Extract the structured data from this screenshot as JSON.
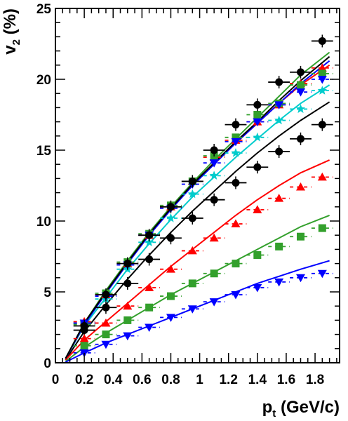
{
  "chart_data": {
    "type": "scatter",
    "title": "",
    "xlabel": {
      "main": "p",
      "sub": "t",
      "rest": " (GeV/c)"
    },
    "ylabel": {
      "main": "v",
      "sub": "2",
      "rest": " (%)"
    },
    "xlim": [
      0,
      1.97
    ],
    "ylim": [
      0,
      25
    ],
    "xticks_major": [
      0,
      0.2,
      0.4,
      0.6,
      0.8,
      1,
      1.2,
      1.4,
      1.6,
      1.8
    ],
    "xtick_labels": [
      "0",
      "0.2",
      "0.4",
      "0.6",
      "0.8",
      "1",
      "1.2",
      "1.4",
      "1.6",
      "1.8"
    ],
    "yticks_major": [
      0,
      5,
      10,
      15,
      20,
      25
    ],
    "ytick_labels": [
      "0",
      "5",
      "10",
      "15",
      "20",
      "25"
    ],
    "grid": false,
    "legend": "none",
    "x_bin_halfwidth": 0.075,
    "x": [
      0.2,
      0.35,
      0.5,
      0.65,
      0.8,
      0.95,
      1.1,
      1.25,
      1.4,
      1.55,
      1.7,
      1.85
    ],
    "series": [
      {
        "marker": "circle",
        "color": "#000000",
        "dashed": false,
        "values": [
          2.3,
          3.9,
          5.6,
          7.3,
          8.8,
          10.2,
          11.5,
          12.7,
          13.8,
          14.9,
          15.8,
          16.8
        ],
        "curve": [
          [
            0.07,
            0.2
          ],
          [
            0.2,
            2.2
          ],
          [
            0.35,
            4.1
          ],
          [
            0.5,
            5.9
          ],
          [
            0.65,
            7.6
          ],
          [
            0.8,
            9.2
          ],
          [
            0.95,
            10.7
          ],
          [
            1.1,
            12.1
          ],
          [
            1.25,
            13.5
          ],
          [
            1.4,
            14.8
          ],
          [
            1.55,
            16.0
          ],
          [
            1.7,
            17.1
          ],
          [
            1.9,
            18.4
          ]
        ]
      },
      {
        "marker": "triangle-up",
        "color": "#ff0000",
        "dashed": true,
        "values": [
          1.7,
          2.8,
          4.0,
          5.3,
          6.6,
          7.9,
          8.8,
          9.8,
          10.8,
          11.6,
          12.4,
          13.1
        ],
        "curve": [
          [
            0.07,
            0.2
          ],
          [
            0.2,
            1.6
          ],
          [
            0.35,
            2.9
          ],
          [
            0.5,
            4.2
          ],
          [
            0.65,
            5.5
          ],
          [
            0.8,
            6.8
          ],
          [
            0.95,
            8.0
          ],
          [
            1.1,
            9.2
          ],
          [
            1.25,
            10.4
          ],
          [
            1.4,
            11.5
          ],
          [
            1.55,
            12.5
          ],
          [
            1.7,
            13.4
          ],
          [
            1.9,
            14.3
          ]
        ]
      },
      {
        "marker": "square",
        "color": "#33a02c",
        "dashed": true,
        "values": [
          1.2,
          2.0,
          3.0,
          3.9,
          4.7,
          5.6,
          6.3,
          7.0,
          7.6,
          8.2,
          8.9,
          9.5
        ],
        "curve": [
          [
            0.07,
            0.1
          ],
          [
            0.2,
            1.1
          ],
          [
            0.35,
            2.1
          ],
          [
            0.5,
            3.0
          ],
          [
            0.65,
            3.9
          ],
          [
            0.8,
            4.8
          ],
          [
            0.95,
            5.6
          ],
          [
            1.1,
            6.4
          ],
          [
            1.25,
            7.2
          ],
          [
            1.4,
            8.0
          ],
          [
            1.55,
            8.8
          ],
          [
            1.7,
            9.6
          ],
          [
            1.9,
            10.4
          ]
        ]
      },
      {
        "marker": "triangle-down",
        "color": "#0000ff",
        "dashed": true,
        "values": [
          0.7,
          1.3,
          1.9,
          2.5,
          3.2,
          3.8,
          4.3,
          4.8,
          5.3,
          5.7,
          6.0,
          6.3
        ],
        "curve": [
          [
            0.07,
            0.05
          ],
          [
            0.2,
            0.7
          ],
          [
            0.35,
            1.4
          ],
          [
            0.5,
            2.0
          ],
          [
            0.65,
            2.6
          ],
          [
            0.8,
            3.2
          ],
          [
            0.95,
            3.8
          ],
          [
            1.1,
            4.4
          ],
          [
            1.25,
            5.0
          ],
          [
            1.4,
            5.6
          ],
          [
            1.55,
            6.1
          ],
          [
            1.7,
            6.6
          ],
          [
            1.9,
            7.2
          ]
        ]
      },
      {
        "marker": "star",
        "color": "#00cccc",
        "dashed": true,
        "values": [
          2.8,
          4.5,
          6.6,
          8.5,
          10.2,
          11.9,
          13.2,
          14.8,
          15.9,
          17.1,
          17.9,
          19.2
        ],
        "curve": [
          [
            0.07,
            0.3
          ],
          [
            0.2,
            2.6
          ],
          [
            0.35,
            4.6
          ],
          [
            0.5,
            6.6
          ],
          [
            0.65,
            8.4
          ],
          [
            0.8,
            10.1
          ],
          [
            0.95,
            11.7
          ],
          [
            1.1,
            13.1
          ],
          [
            1.25,
            14.5
          ],
          [
            1.4,
            15.8
          ],
          [
            1.55,
            17.1
          ],
          [
            1.7,
            18.3
          ],
          [
            1.9,
            19.6
          ]
        ]
      },
      {
        "marker": "triangle-up",
        "color": "#ff0000",
        "dashed": true,
        "values": [
          2.9,
          4.8,
          7.0,
          9.0,
          11.0,
          12.8,
          14.5,
          15.7,
          17.0,
          18.2,
          19.7,
          20.8
        ],
        "curve": [
          [
            0.07,
            0.3
          ],
          [
            0.2,
            2.7
          ],
          [
            0.35,
            5.0
          ],
          [
            0.5,
            7.1
          ],
          [
            0.65,
            9.1
          ],
          [
            0.8,
            10.9
          ],
          [
            0.95,
            12.6
          ],
          [
            1.1,
            14.1
          ],
          [
            1.25,
            15.5
          ],
          [
            1.4,
            16.9
          ],
          [
            1.55,
            18.3
          ],
          [
            1.7,
            19.6
          ],
          [
            1.9,
            21.0
          ]
        ]
      },
      {
        "marker": "square",
        "color": "#33a02c",
        "dashed": true,
        "values": [
          2.7,
          4.9,
          7.1,
          9.1,
          11.1,
          12.8,
          14.6,
          15.9,
          17.5,
          18.3,
          19.6,
          20.4
        ],
        "curve": [
          [
            0.07,
            0.3
          ],
          [
            0.2,
            2.8
          ],
          [
            0.35,
            5.1
          ],
          [
            0.5,
            7.2
          ],
          [
            0.65,
            9.2
          ],
          [
            0.8,
            11.0
          ],
          [
            0.95,
            12.7
          ],
          [
            1.1,
            14.3
          ],
          [
            1.25,
            15.8
          ],
          [
            1.4,
            17.3
          ],
          [
            1.55,
            18.8
          ],
          [
            1.7,
            20.3
          ],
          [
            1.9,
            21.9
          ]
        ]
      },
      {
        "marker": "triangle-down",
        "color": "#0000ff",
        "dashed": true,
        "values": [
          2.8,
          4.7,
          6.9,
          9.0,
          10.9,
          12.6,
          14.1,
          15.6,
          17.0,
          18.2,
          19.1,
          20.0
        ],
        "curve": [
          [
            0.07,
            0.3
          ],
          [
            0.2,
            2.7
          ],
          [
            0.35,
            4.9
          ],
          [
            0.5,
            7.0
          ],
          [
            0.65,
            9.0
          ],
          [
            0.8,
            10.8
          ],
          [
            0.95,
            12.5
          ],
          [
            1.1,
            14.0
          ],
          [
            1.25,
            15.5
          ],
          [
            1.4,
            16.9
          ],
          [
            1.55,
            18.3
          ],
          [
            1.7,
            19.7
          ],
          [
            1.9,
            21.3
          ]
        ]
      },
      {
        "marker": "circle",
        "color": "#000000",
        "dashed": false,
        "values": [
          2.6,
          4.8,
          7.0,
          9.0,
          11.0,
          12.8,
          15.0,
          16.8,
          18.2,
          19.8,
          20.5,
          22.7
        ],
        "curve": [
          [
            0.07,
            0.3
          ],
          [
            0.2,
            2.8
          ],
          [
            0.35,
            5.0
          ],
          [
            0.5,
            7.1
          ],
          [
            0.65,
            9.1
          ],
          [
            0.8,
            10.9
          ],
          [
            0.95,
            12.6
          ],
          [
            1.1,
            14.1
          ],
          [
            1.25,
            15.6
          ],
          [
            1.4,
            17.0
          ],
          [
            1.55,
            18.5
          ],
          [
            1.7,
            19.9
          ],
          [
            1.9,
            21.6
          ]
        ]
      }
    ]
  }
}
